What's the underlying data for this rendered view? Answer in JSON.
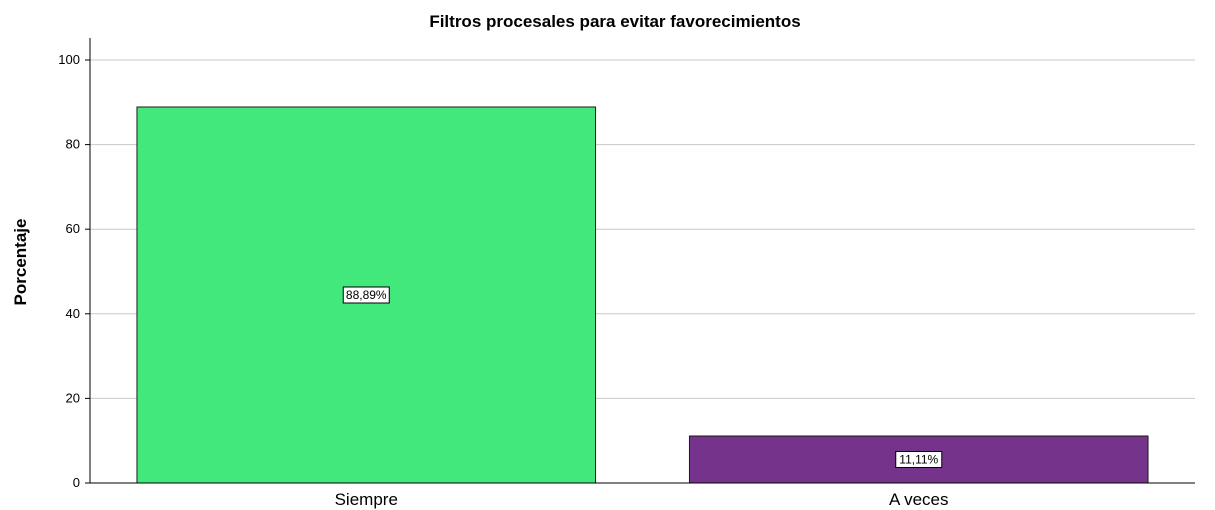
{
  "chart_data": {
    "type": "bar",
    "title": "Filtros procesales para evitar favorecimientos",
    "xlabel": "",
    "ylabel": "Porcentaje",
    "categories": [
      "Siempre",
      "A veces"
    ],
    "values": [
      88.89,
      11.11
    ],
    "data_labels": [
      "88,89%",
      "11,11%"
    ],
    "colors": [
      "#42e87c",
      "#76338c"
    ],
    "ylim": [
      0,
      100
    ],
    "yticks": [
      0,
      20,
      40,
      60,
      80,
      100
    ],
    "grid": true,
    "legend": "none"
  }
}
